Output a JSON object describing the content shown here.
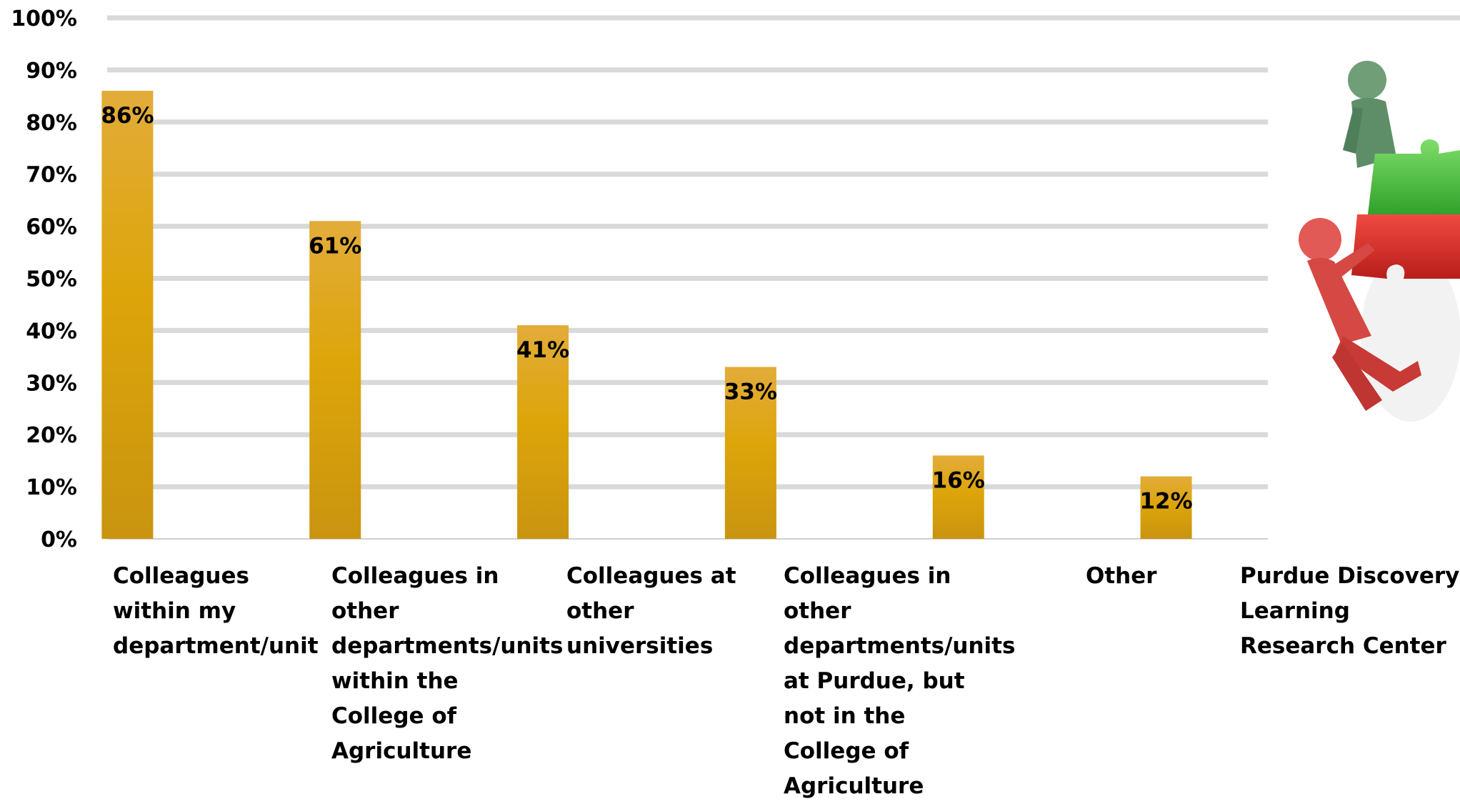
{
  "chart_data": {
    "type": "bar",
    "title": "",
    "xlabel": "",
    "ylabel": "",
    "ylim": [
      0,
      100
    ],
    "y_ticks": [
      "0%",
      "10%",
      "20%",
      "30%",
      "40%",
      "50%",
      "60%",
      "70%",
      "80%",
      "90%",
      "100%"
    ],
    "grid": true,
    "legend": "none",
    "categories": [
      "Colleagues within my department/unit",
      "Colleagues in other departments/units within the College of Agriculture",
      "Colleagues at other universities",
      "Colleagues in other departments/units at Purdue, but not in the College of Agriculture",
      "Other",
      "Purdue Discovery Learning Research Center"
    ],
    "values": [
      86,
      61,
      41,
      33,
      16,
      12
    ],
    "data_labels": [
      "86%",
      "61%",
      "41%",
      "33%",
      "16%",
      "12%"
    ],
    "bar_color": "#DBA40E",
    "grid_color": "#D9D9D9",
    "illustration": "two-people-holding-puzzle-pieces"
  }
}
